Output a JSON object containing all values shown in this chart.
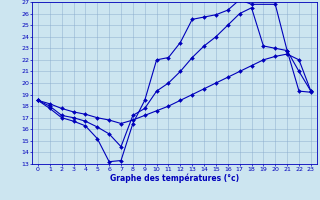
{
  "xlabel": "Graphe des températures (°c)",
  "background_color": "#cce5f0",
  "line_color": "#0000bb",
  "grid_color": "#88aacc",
  "ylim": [
    13,
    27
  ],
  "xlim": [
    -0.5,
    23.5
  ],
  "yticks": [
    13,
    14,
    15,
    16,
    17,
    18,
    19,
    20,
    21,
    22,
    23,
    24,
    25,
    26,
    27
  ],
  "xticks": [
    0,
    1,
    2,
    3,
    4,
    5,
    6,
    7,
    8,
    9,
    10,
    11,
    12,
    13,
    14,
    15,
    16,
    17,
    18,
    19,
    20,
    21,
    22,
    23
  ],
  "curve1_x": [
    0,
    1,
    2,
    3,
    4,
    5,
    6,
    7,
    8,
    9,
    10,
    11,
    12,
    13,
    14,
    15,
    16,
    17,
    18,
    20,
    21,
    22,
    23
  ],
  "curve1_y": [
    18.5,
    17.8,
    17.0,
    16.7,
    16.3,
    15.2,
    13.2,
    13.3,
    16.5,
    18.5,
    22.0,
    22.2,
    23.5,
    25.5,
    25.7,
    25.9,
    26.3,
    27.2,
    26.8,
    26.8,
    22.8,
    19.3,
    19.2
  ],
  "curve2_x": [
    0,
    1,
    2,
    3,
    4,
    5,
    6,
    7,
    8,
    9,
    10,
    11,
    12,
    13,
    14,
    15,
    16,
    17,
    18,
    19,
    20,
    21,
    22,
    23
  ],
  "curve2_y": [
    18.5,
    18.0,
    17.2,
    17.0,
    16.7,
    16.2,
    15.6,
    14.5,
    17.2,
    17.8,
    19.3,
    20.0,
    21.0,
    22.2,
    23.2,
    24.0,
    25.0,
    26.0,
    26.5,
    23.2,
    23.0,
    22.8,
    21.0,
    19.3
  ],
  "curve3_x": [
    0,
    1,
    2,
    3,
    4,
    5,
    6,
    7,
    8,
    9,
    10,
    11,
    12,
    13,
    14,
    15,
    16,
    17,
    18,
    19,
    20,
    21,
    22,
    23
  ],
  "curve3_y": [
    18.5,
    18.2,
    17.8,
    17.5,
    17.3,
    17.0,
    16.8,
    16.5,
    16.8,
    17.2,
    17.6,
    18.0,
    18.5,
    19.0,
    19.5,
    20.0,
    20.5,
    21.0,
    21.5,
    22.0,
    22.3,
    22.5,
    22.0,
    19.3
  ]
}
